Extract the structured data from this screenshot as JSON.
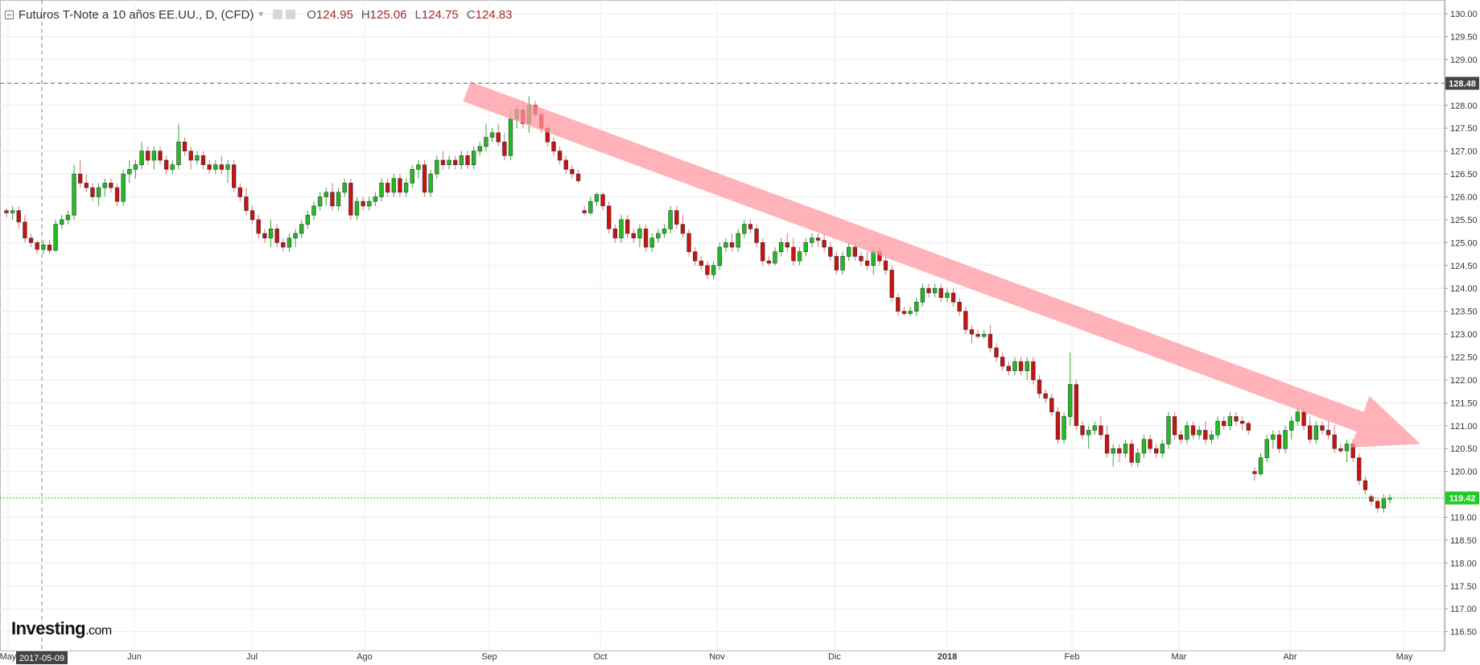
{
  "legend": {
    "instrument": "Futuros T-Note a 10 años EE.UU., D, (CFD)",
    "open_label": "O",
    "open": "124.95",
    "high_label": "H",
    "high": "125.06",
    "low_label": "L",
    "low": "124.75",
    "close_label": "C",
    "close": "124.83"
  },
  "brand": {
    "name": "Investing",
    "suffix": ".com"
  },
  "colors": {
    "up": "#22bb22",
    "down": "#cc1111",
    "arrow": "#ff9aa0",
    "price_line": "#22cc22",
    "price_label": "#22cc22",
    "crosshair_label": "#444444",
    "grid": "#ececec"
  },
  "chart_data": {
    "type": "candlestick",
    "title": "Futuros T-Note a 10 años EE.UU., D, (CFD)",
    "y_axis": {
      "position": "right",
      "ylim": [
        116.3,
        130.3
      ],
      "ticks": [
        "117.00",
        "117.50",
        "118.00",
        "118.50",
        "119.00",
        "119.50",
        "120.00",
        "120.50",
        "121.00",
        "121.50",
        "122.00",
        "122.50",
        "123.00",
        "123.50",
        "124.00",
        "124.50",
        "125.00",
        "125.50",
        "126.00",
        "126.50",
        "127.00",
        "127.50",
        "128.00",
        "128.50",
        "129.00",
        "129.50",
        "130.00",
        "116.50"
      ]
    },
    "x_axis": {
      "labels": [
        "May",
        "Jun",
        "Jul",
        "Ago",
        "Sep",
        "Oct",
        "Nov",
        "Dic",
        "2018",
        "Feb",
        "Mar",
        "Abr",
        "May"
      ],
      "crosshair_date": "2017-05-09"
    },
    "current_price": "119.42",
    "crosshair_price": "128.48",
    "annotation": {
      "type": "arrow",
      "direction": "down-right",
      "from": {
        "date": "2017-09-01",
        "price": 128.3
      },
      "to": {
        "date": "2018-04-29",
        "price": 120.6
      }
    },
    "candles": [
      [
        125.7,
        125.75,
        125.55,
        125.65
      ],
      [
        125.65,
        125.8,
        125.5,
        125.7
      ],
      [
        125.7,
        125.8,
        125.3,
        125.45
      ],
      [
        125.45,
        125.6,
        125.0,
        125.1
      ],
      [
        125.1,
        125.2,
        124.9,
        125.0
      ],
      [
        125.0,
        125.05,
        124.75,
        124.85
      ],
      [
        124.85,
        125.05,
        124.75,
        124.95
      ],
      [
        124.95,
        125.06,
        124.75,
        124.83
      ],
      [
        124.83,
        125.5,
        124.8,
        125.4
      ],
      [
        125.4,
        125.6,
        125.3,
        125.5
      ],
      [
        125.5,
        125.7,
        125.4,
        125.6
      ],
      [
        125.6,
        126.7,
        125.5,
        126.5
      ],
      [
        126.5,
        126.8,
        126.2,
        126.3
      ],
      [
        126.3,
        126.5,
        126.1,
        126.2
      ],
      [
        126.2,
        126.3,
        125.9,
        126.0
      ],
      [
        126.0,
        126.3,
        125.8,
        126.2
      ],
      [
        126.2,
        126.4,
        126.0,
        126.3
      ],
      [
        126.3,
        126.4,
        126.1,
        126.2
      ],
      [
        126.2,
        126.3,
        125.8,
        125.9
      ],
      [
        125.9,
        126.6,
        125.8,
        126.5
      ],
      [
        126.5,
        126.8,
        126.3,
        126.6
      ],
      [
        126.6,
        126.8,
        126.4,
        126.7
      ],
      [
        126.7,
        127.2,
        126.6,
        127.0
      ],
      [
        127.0,
        127.1,
        126.7,
        126.8
      ],
      [
        126.8,
        127.1,
        126.6,
        127.0
      ],
      [
        127.0,
        127.1,
        126.7,
        126.8
      ],
      [
        126.8,
        126.9,
        126.5,
        126.6
      ],
      [
        126.6,
        126.8,
        126.5,
        126.7
      ],
      [
        126.7,
        127.6,
        126.6,
        127.2
      ],
      [
        127.2,
        127.3,
        126.9,
        127.0
      ],
      [
        127.0,
        127.1,
        126.6,
        126.8
      ],
      [
        126.8,
        127.0,
        126.7,
        126.9
      ],
      [
        126.9,
        127.0,
        126.6,
        126.7
      ],
      [
        126.7,
        126.8,
        126.5,
        126.6
      ],
      [
        126.6,
        126.8,
        126.5,
        126.7
      ],
      [
        126.7,
        126.9,
        126.5,
        126.6
      ],
      [
        126.6,
        126.8,
        126.3,
        126.7
      ],
      [
        126.7,
        126.8,
        126.1,
        126.2
      ],
      [
        126.2,
        126.3,
        125.9,
        126.0
      ],
      [
        126.0,
        126.2,
        125.6,
        125.7
      ],
      [
        125.7,
        125.8,
        125.4,
        125.5
      ],
      [
        125.5,
        125.6,
        125.1,
        125.2
      ],
      [
        125.2,
        125.3,
        125.0,
        125.1
      ],
      [
        125.1,
        125.5,
        124.9,
        125.3
      ],
      [
        125.3,
        125.4,
        124.9,
        125.0
      ],
      [
        125.0,
        125.1,
        124.8,
        124.9
      ],
      [
        124.9,
        125.2,
        124.8,
        125.1
      ],
      [
        125.1,
        125.3,
        124.9,
        125.2
      ],
      [
        125.2,
        125.5,
        125.1,
        125.4
      ],
      [
        125.4,
        125.7,
        125.3,
        125.6
      ],
      [
        125.6,
        125.9,
        125.5,
        125.8
      ],
      [
        125.8,
        126.1,
        125.7,
        126.0
      ],
      [
        126.0,
        126.2,
        125.8,
        126.1
      ],
      [
        126.1,
        126.3,
        125.7,
        125.8
      ],
      [
        125.8,
        126.2,
        125.7,
        126.1
      ],
      [
        126.1,
        126.4,
        126.0,
        126.3
      ],
      [
        126.3,
        126.4,
        125.5,
        125.6
      ],
      [
        125.6,
        126.0,
        125.5,
        125.9
      ],
      [
        125.9,
        126.0,
        125.7,
        125.8
      ],
      [
        125.8,
        126.0,
        125.7,
        125.9
      ],
      [
        125.9,
        126.1,
        125.8,
        126.0
      ],
      [
        126.0,
        126.4,
        125.9,
        126.3
      ],
      [
        126.3,
        126.4,
        126.0,
        126.1
      ],
      [
        126.1,
        126.5,
        126.0,
        126.4
      ],
      [
        126.4,
        126.5,
        126.0,
        126.1
      ],
      [
        126.1,
        126.4,
        126.0,
        126.3
      ],
      [
        126.3,
        126.7,
        126.2,
        126.6
      ],
      [
        126.6,
        126.8,
        126.4,
        126.7
      ],
      [
        126.7,
        126.8,
        126.0,
        126.1
      ],
      [
        126.1,
        126.6,
        126.0,
        126.5
      ],
      [
        126.5,
        126.9,
        126.4,
        126.8
      ],
      [
        126.8,
        127.0,
        126.6,
        126.7
      ],
      [
        126.7,
        126.9,
        126.6,
        126.8
      ],
      [
        126.8,
        126.9,
        126.6,
        126.7
      ],
      [
        126.7,
        127.0,
        126.6,
        126.9
      ],
      [
        126.9,
        127.0,
        126.6,
        126.7
      ],
      [
        126.7,
        127.1,
        126.6,
        127.0
      ],
      [
        127.0,
        127.2,
        126.9,
        127.1
      ],
      [
        127.1,
        127.6,
        127.0,
        127.3
      ],
      [
        127.3,
        127.5,
        127.2,
        127.4
      ],
      [
        127.4,
        127.6,
        127.1,
        127.2
      ],
      [
        127.2,
        127.4,
        126.8,
        126.9
      ],
      [
        126.9,
        127.9,
        126.8,
        127.7
      ],
      [
        127.7,
        128.0,
        127.5,
        127.9
      ],
      [
        127.9,
        128.1,
        127.5,
        127.6
      ],
      [
        127.6,
        128.2,
        127.4,
        128.0
      ],
      [
        128.0,
        128.1,
        127.7,
        127.8
      ],
      [
        127.8,
        127.9,
        127.4,
        127.5
      ],
      [
        127.5,
        127.6,
        127.1,
        127.2
      ],
      [
        127.2,
        127.3,
        126.9,
        127.0
      ],
      [
        127.0,
        127.1,
        126.7,
        126.8
      ],
      [
        126.8,
        126.9,
        126.5,
        126.6
      ],
      [
        126.6,
        126.7,
        126.4,
        126.5
      ],
      [
        126.5,
        126.6,
        126.3,
        126.35
      ],
      [
        125.7,
        125.8,
        125.6,
        125.65
      ],
      [
        125.65,
        126.0,
        125.6,
        125.9
      ],
      [
        125.9,
        126.1,
        125.8,
        126.05
      ],
      [
        126.05,
        126.1,
        125.7,
        125.8
      ],
      [
        125.8,
        125.9,
        125.2,
        125.3
      ],
      [
        125.3,
        125.4,
        125.0,
        125.1
      ],
      [
        125.1,
        125.6,
        125.0,
        125.5
      ],
      [
        125.5,
        125.6,
        125.1,
        125.2
      ],
      [
        125.2,
        125.3,
        125.0,
        125.1
      ],
      [
        125.1,
        125.4,
        124.9,
        125.3
      ],
      [
        125.3,
        125.4,
        124.8,
        124.9
      ],
      [
        124.9,
        125.2,
        124.8,
        125.1
      ],
      [
        125.1,
        125.3,
        125.0,
        125.2
      ],
      [
        125.2,
        125.4,
        125.1,
        125.3
      ],
      [
        125.3,
        125.8,
        125.2,
        125.7
      ],
      [
        125.7,
        125.8,
        125.3,
        125.4
      ],
      [
        125.4,
        125.6,
        125.1,
        125.2
      ],
      [
        125.2,
        125.3,
        124.7,
        124.8
      ],
      [
        124.8,
        124.9,
        124.5,
        124.6
      ],
      [
        124.6,
        124.7,
        124.4,
        124.5
      ],
      [
        124.5,
        124.6,
        124.2,
        124.3
      ],
      [
        124.3,
        124.6,
        124.2,
        124.5
      ],
      [
        124.5,
        125.0,
        124.4,
        124.9
      ],
      [
        124.9,
        125.1,
        124.8,
        125.0
      ],
      [
        125.0,
        125.2,
        124.8,
        124.9
      ],
      [
        124.9,
        125.3,
        124.8,
        125.2
      ],
      [
        125.2,
        125.5,
        125.1,
        125.4
      ],
      [
        125.4,
        125.5,
        125.2,
        125.3
      ],
      [
        125.3,
        125.4,
        124.9,
        125.0
      ],
      [
        125.0,
        125.1,
        124.5,
        124.6
      ],
      [
        124.6,
        124.7,
        124.5,
        124.55
      ],
      [
        124.55,
        124.9,
        124.5,
        124.8
      ],
      [
        124.8,
        125.1,
        124.7,
        125.0
      ],
      [
        125.0,
        125.2,
        124.8,
        124.9
      ],
      [
        124.9,
        125.1,
        124.5,
        124.6
      ],
      [
        124.6,
        124.9,
        124.5,
        124.8
      ],
      [
        124.8,
        125.1,
        124.7,
        125.0
      ],
      [
        125.0,
        125.2,
        124.9,
        125.1
      ],
      [
        125.1,
        125.2,
        124.9,
        125.05
      ],
      [
        125.05,
        125.2,
        124.8,
        124.9
      ],
      [
        124.9,
        125.0,
        124.6,
        124.7
      ],
      [
        124.7,
        124.8,
        124.3,
        124.4
      ],
      [
        124.4,
        124.8,
        124.3,
        124.7
      ],
      [
        124.7,
        125.0,
        124.6,
        124.9
      ],
      [
        124.9,
        125.0,
        124.6,
        124.7
      ],
      [
        124.7,
        124.8,
        124.5,
        124.6
      ],
      [
        124.6,
        124.8,
        124.4,
        124.5
      ],
      [
        124.5,
        124.9,
        124.3,
        124.8
      ],
      [
        124.8,
        124.9,
        124.5,
        124.6
      ],
      [
        124.6,
        124.7,
        124.3,
        124.4
      ],
      [
        124.4,
        124.5,
        123.7,
        123.8
      ],
      [
        123.8,
        123.9,
        123.4,
        123.5
      ],
      [
        123.5,
        123.6,
        123.4,
        123.45
      ],
      [
        123.45,
        123.6,
        123.4,
        123.5
      ],
      [
        123.5,
        123.8,
        123.4,
        123.7
      ],
      [
        123.7,
        124.1,
        123.6,
        124.0
      ],
      [
        124.0,
        124.1,
        123.8,
        123.9
      ],
      [
        123.9,
        124.1,
        123.8,
        124.0
      ],
      [
        124.0,
        124.1,
        123.7,
        123.8
      ],
      [
        123.8,
        124.0,
        123.7,
        123.9
      ],
      [
        123.9,
        124.0,
        123.6,
        123.7
      ],
      [
        123.7,
        123.8,
        123.4,
        123.5
      ],
      [
        123.5,
        123.6,
        123.0,
        123.1
      ],
      [
        123.1,
        123.2,
        122.8,
        123.0
      ],
      [
        123.0,
        123.1,
        122.9,
        122.95
      ],
      [
        122.95,
        123.1,
        122.9,
        123.0
      ],
      [
        123.0,
        123.2,
        122.6,
        122.7
      ],
      [
        122.7,
        122.8,
        122.4,
        122.5
      ],
      [
        122.5,
        122.6,
        122.2,
        122.3
      ],
      [
        122.3,
        122.4,
        122.1,
        122.2
      ],
      [
        122.2,
        122.5,
        122.1,
        122.4
      ],
      [
        122.4,
        122.5,
        122.1,
        122.2
      ],
      [
        122.2,
        122.5,
        122.0,
        122.4
      ],
      [
        122.4,
        122.5,
        121.9,
        122.0
      ],
      [
        122.0,
        122.1,
        121.6,
        121.7
      ],
      [
        121.7,
        121.8,
        121.5,
        121.6
      ],
      [
        121.6,
        121.7,
        121.2,
        121.3
      ],
      [
        121.3,
        121.4,
        120.6,
        120.7
      ],
      [
        120.7,
        121.3,
        120.6,
        121.2
      ],
      [
        121.2,
        122.6,
        121.0,
        121.9
      ],
      [
        121.9,
        122.0,
        120.9,
        121.0
      ],
      [
        121.0,
        121.1,
        120.7,
        120.8
      ],
      [
        120.8,
        121.0,
        120.5,
        120.9
      ],
      [
        120.9,
        121.1,
        120.8,
        121.0
      ],
      [
        121.0,
        121.2,
        120.7,
        120.8
      ],
      [
        120.8,
        121.0,
        120.3,
        120.4
      ],
      [
        120.4,
        120.6,
        120.1,
        120.5
      ],
      [
        120.5,
        120.6,
        120.2,
        120.4
      ],
      [
        120.4,
        120.7,
        120.3,
        120.6
      ],
      [
        120.6,
        120.7,
        120.1,
        120.2
      ],
      [
        120.2,
        120.5,
        120.1,
        120.4
      ],
      [
        120.4,
        120.8,
        120.3,
        120.7
      ],
      [
        120.7,
        120.8,
        120.4,
        120.5
      ],
      [
        120.5,
        120.6,
        120.3,
        120.4
      ],
      [
        120.4,
        120.7,
        120.3,
        120.6
      ],
      [
        120.6,
        121.3,
        120.5,
        121.2
      ],
      [
        121.2,
        121.3,
        120.7,
        120.8
      ],
      [
        120.8,
        120.9,
        120.6,
        120.7
      ],
      [
        120.7,
        121.1,
        120.6,
        121.0
      ],
      [
        121.0,
        121.1,
        120.7,
        120.8
      ],
      [
        120.8,
        121.0,
        120.7,
        120.9
      ],
      [
        120.9,
        121.1,
        120.6,
        120.7
      ],
      [
        120.7,
        120.9,
        120.6,
        120.8
      ],
      [
        120.8,
        121.2,
        120.7,
        121.1
      ],
      [
        121.1,
        121.2,
        120.9,
        121.0
      ],
      [
        121.0,
        121.3,
        120.9,
        121.2
      ],
      [
        121.2,
        121.3,
        121.0,
        121.1
      ],
      [
        121.1,
        121.2,
        120.9,
        121.05
      ],
      [
        121.05,
        121.1,
        120.8,
        120.9
      ],
      [
        120.0,
        120.1,
        119.8,
        119.95
      ],
      [
        119.95,
        120.4,
        119.9,
        120.3
      ],
      [
        120.3,
        120.8,
        120.2,
        120.7
      ],
      [
        120.7,
        120.9,
        120.5,
        120.8
      ],
      [
        120.8,
        120.9,
        120.4,
        120.5
      ],
      [
        120.5,
        121.0,
        120.4,
        120.9
      ],
      [
        120.9,
        121.2,
        120.7,
        121.1
      ],
      [
        121.1,
        121.4,
        121.0,
        121.3
      ],
      [
        121.3,
        121.4,
        120.9,
        121.0
      ],
      [
        121.0,
        121.2,
        120.6,
        120.7
      ],
      [
        120.7,
        121.1,
        120.6,
        121.0
      ],
      [
        121.0,
        121.1,
        120.8,
        120.9
      ],
      [
        120.9,
        121.1,
        120.7,
        120.8
      ],
      [
        120.8,
        121.0,
        120.4,
        120.5
      ],
      [
        120.5,
        120.6,
        120.4,
        120.45
      ],
      [
        120.45,
        120.7,
        120.2,
        120.6
      ],
      [
        120.6,
        120.7,
        120.2,
        120.3
      ],
      [
        120.3,
        120.4,
        119.7,
        119.8
      ],
      [
        119.8,
        119.9,
        119.5,
        119.6
      ],
      [
        119.45,
        119.5,
        119.25,
        119.35
      ],
      [
        119.35,
        119.4,
        119.1,
        119.2
      ],
      [
        119.2,
        119.5,
        119.1,
        119.4
      ],
      [
        119.4,
        119.5,
        119.3,
        119.42
      ]
    ]
  }
}
